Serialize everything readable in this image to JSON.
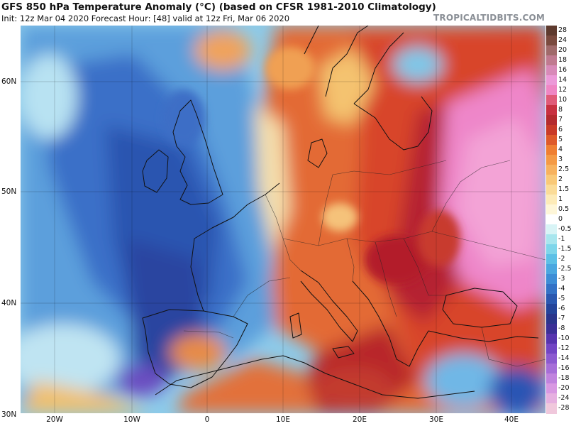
{
  "header": {
    "title": "GFS 850 hPa Temperature Anomaly (°C) (based on CFSR 1981-2010 Climatology)",
    "subtitle": "Init: 12z Mar 04 2020   Forecast Hour: [48]   valid at 12z Fri, Mar 06 2020",
    "watermark": "TROPICALTIDBITS.COM"
  },
  "map": {
    "lat_labels": [
      "60N",
      "50N",
      "40N",
      "30N"
    ],
    "lon_labels": [
      "20W",
      "10W",
      "0",
      "10E",
      "20E",
      "30E",
      "40E"
    ],
    "colors": {
      "deep_blue": "#1f3f9e",
      "mid_blue": "#3f74c9",
      "light_blue": "#7fc3e8",
      "cyan": "#a8e3ee",
      "cream": "#f5e7b8",
      "orange": "#ef8a3b",
      "red": "#d93f2b",
      "dark_red": "#a8201f",
      "pink": "#ee86c9",
      "purple": "#7a4cc0"
    }
  },
  "colorbar": {
    "labels": [
      "28",
      "24",
      "20",
      "18",
      "16",
      "14",
      "12",
      "10",
      "8",
      "7",
      "6",
      "5",
      "4",
      "3",
      "2.5",
      "2",
      "1.5",
      "1",
      "0.5",
      "0",
      "-0.5",
      "-1",
      "-1.5",
      "-2",
      "-2.5",
      "-3",
      "-4",
      "-5",
      "-6",
      "-7",
      "-8",
      "-10",
      "-12",
      "-14",
      "-16",
      "-18",
      "-20",
      "-24",
      "-28"
    ],
    "colors": [
      "#5e3a2e",
      "#7a4a3e",
      "#a06a6a",
      "#c07a90",
      "#d88ab8",
      "#ec9ad8",
      "#ef86c4",
      "#e05a78",
      "#c83040",
      "#b42a2e",
      "#c93a28",
      "#de5a2a",
      "#ef7f32",
      "#f49a45",
      "#f7b25e",
      "#f9c978",
      "#fbdc98",
      "#fdebb8",
      "#fef6d8",
      "#ffffff",
      "#d8f4f6",
      "#a8e6ee",
      "#7ed6ea",
      "#5cc0e6",
      "#4aa7e0",
      "#3d8dd6",
      "#3372c6",
      "#2a58b0",
      "#24449a",
      "#2a358c",
      "#3a2f96",
      "#5634ae",
      "#7245c4",
      "#8c5ad0",
      "#a66ed8",
      "#c083de",
      "#d898e2",
      "#e6b0e0",
      "#f0c8dc"
    ]
  }
}
